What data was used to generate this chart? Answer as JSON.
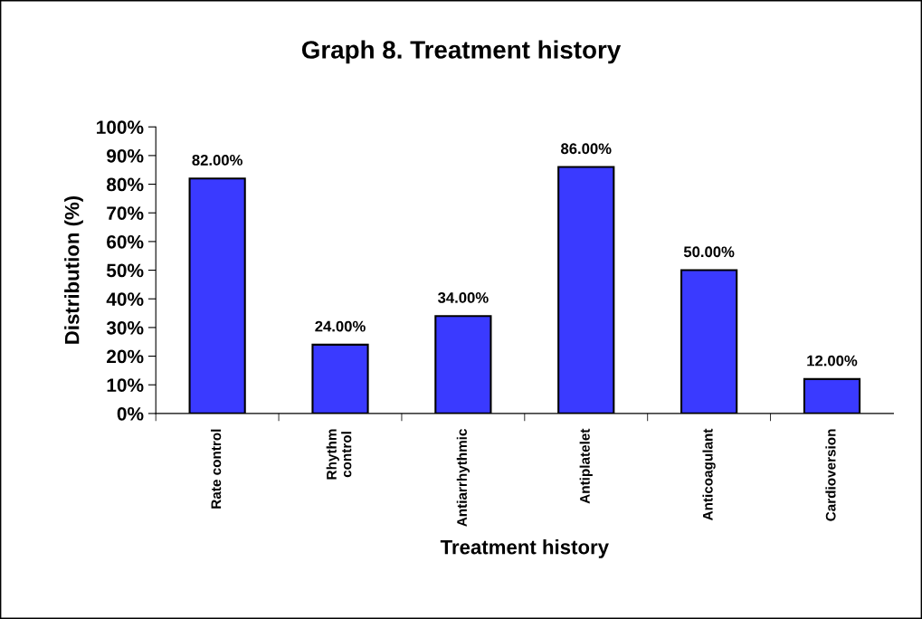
{
  "chart_data": {
    "type": "bar",
    "title": "Graph 8. Treatment history",
    "xlabel": "Treatment history",
    "ylabel": "Distribution (%)",
    "categories": [
      "Rate control",
      "Rhythm\ncontrol",
      "Antiarrhythmic",
      "Antiplatelet",
      "Anticoagulant",
      "Cardioversion"
    ],
    "values": [
      82,
      24,
      34,
      86,
      50,
      12
    ],
    "value_labels": [
      "82.00%",
      "24.00%",
      "34.00%",
      "86.00%",
      "50.00%",
      "12.00%"
    ],
    "color": "#3a3aff",
    "ylim": [
      0,
      100
    ],
    "yticks": [
      {
        "value": 0,
        "label": "0%"
      },
      {
        "value": 10,
        "label": "10%"
      },
      {
        "value": 20,
        "label": "20%"
      },
      {
        "value": 30,
        "label": "30%"
      },
      {
        "value": 40,
        "label": "40%"
      },
      {
        "value": 50,
        "label": "50%"
      },
      {
        "value": 60,
        "label": "60%"
      },
      {
        "value": 70,
        "label": "70%"
      },
      {
        "value": 80,
        "label": "80%"
      },
      {
        "value": 90,
        "label": "90%"
      },
      {
        "value": 100,
        "label": "100%"
      }
    ],
    "grid": false
  }
}
